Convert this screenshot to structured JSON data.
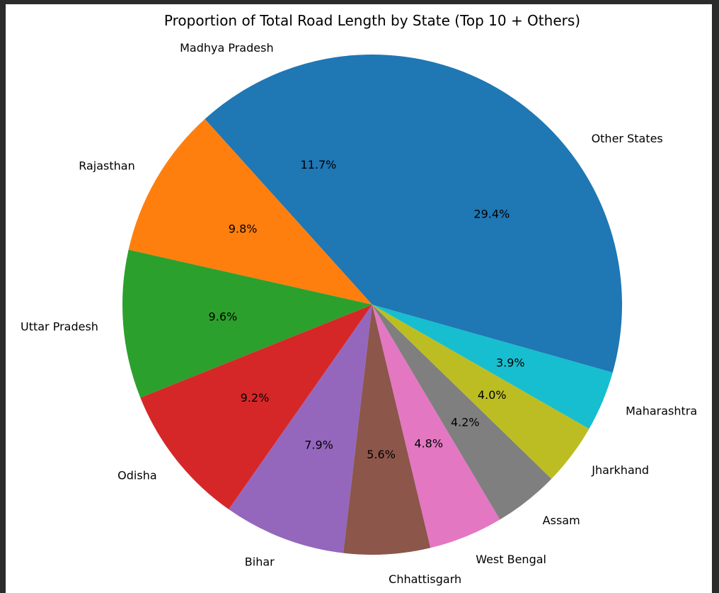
{
  "chart_data": {
    "type": "pie",
    "title": "Proportion of Total Road Length by State (Top 10 + Others)",
    "start_angle_deg": 90,
    "direction": "counterclockwise",
    "slices": [
      {
        "label": "Madhya Pradesh",
        "value": 11.7,
        "pct_label": "11.7%",
        "color": "#1f77b4"
      },
      {
        "label": "Rajasthan",
        "value": 9.8,
        "pct_label": "9.8%",
        "color": "#ff7f0e"
      },
      {
        "label": "Uttar Pradesh",
        "value": 9.6,
        "pct_label": "9.6%",
        "color": "#2ca02c"
      },
      {
        "label": "Odisha",
        "value": 9.2,
        "pct_label": "9.2%",
        "color": "#d62728"
      },
      {
        "label": "Bihar",
        "value": 7.9,
        "pct_label": "7.9%",
        "color": "#9467bd"
      },
      {
        "label": "Chhattisgarh",
        "value": 5.6,
        "pct_label": "5.6%",
        "color": "#8c564b"
      },
      {
        "label": "West Bengal",
        "value": 4.8,
        "pct_label": "4.8%",
        "color": "#e377c2"
      },
      {
        "label": "Assam",
        "value": 4.2,
        "pct_label": "4.2%",
        "color": "#7f7f7f"
      },
      {
        "label": "Jharkhand",
        "value": 4.0,
        "pct_label": "4.0%",
        "color": "#bcbd22"
      },
      {
        "label": "Maharashtra",
        "value": 3.9,
        "pct_label": "3.9%",
        "color": "#17becf"
      },
      {
        "label": "Other States",
        "value": 29.4,
        "pct_label": "29.4%",
        "color": "#1f77b4"
      }
    ]
  }
}
